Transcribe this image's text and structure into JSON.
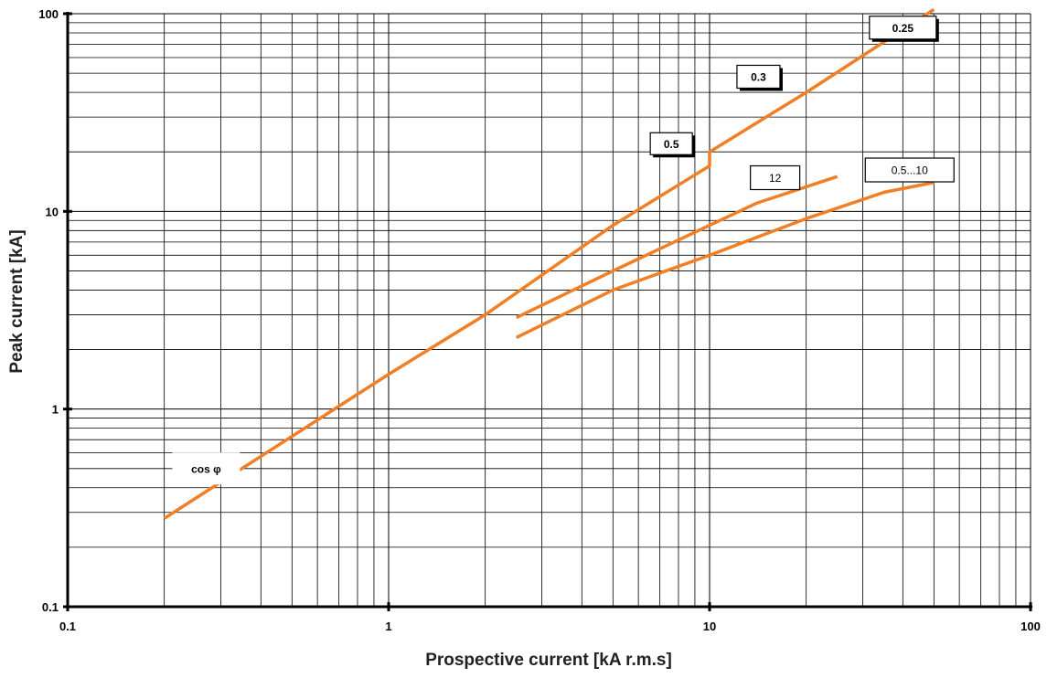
{
  "chart_data": {
    "type": "line",
    "xscale": "log",
    "yscale": "log",
    "xlim": [
      0.1,
      100
    ],
    "ylim": [
      0.1,
      100
    ],
    "grid": true,
    "xlabel": "Prospective current [kA r.m.s]",
    "ylabel": "Peak current [kA]",
    "xticks": [
      0.1,
      1,
      10,
      100
    ],
    "xtick_labels": [
      "0.1",
      "1",
      "10",
      "100"
    ],
    "yticks": [
      0.1,
      1,
      10,
      100
    ],
    "ytick_labels": [
      "0.1",
      "1",
      "10",
      "100"
    ],
    "series": [
      {
        "name": "cos φ",
        "color": "#f07f26",
        "points": [
          [
            0.2,
            0.28
          ],
          [
            1,
            1.5
          ],
          [
            2,
            3.0
          ],
          [
            5,
            8.5
          ],
          [
            10,
            17
          ],
          [
            10,
            20
          ],
          [
            20,
            40
          ],
          [
            50,
            105
          ]
        ]
      },
      {
        "name": "12",
        "color": "#f07f26",
        "points": [
          [
            2.5,
            2.9
          ],
          [
            5,
            5.0
          ],
          [
            10,
            8.5
          ],
          [
            14,
            11
          ],
          [
            25,
            15
          ]
        ]
      },
      {
        "name": "0.5...10",
        "color": "#f07f26",
        "points": [
          [
            2.5,
            2.3
          ],
          [
            5,
            4.0
          ],
          [
            10,
            6.0
          ],
          [
            20,
            9.2
          ],
          [
            35,
            12.5
          ],
          [
            50,
            14
          ]
        ]
      }
    ],
    "annotations": [
      {
        "text": "cos φ",
        "bold": true
      },
      {
        "text": "0.5",
        "bold": true
      },
      {
        "text": "0.3",
        "bold": true
      },
      {
        "text": "0.25",
        "bold": true
      },
      {
        "text": "12",
        "bold": false
      },
      {
        "text": "0.5...10",
        "bold": false
      }
    ]
  }
}
